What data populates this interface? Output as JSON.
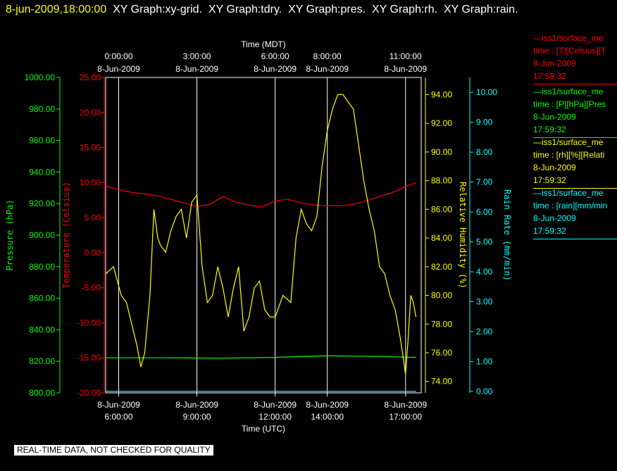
{
  "header": {
    "timestamp": "8-jun-2009,18:00:00",
    "titles": "  XY Graph:xy-grid.  XY Graph:tdry.  XY Graph:pres.  XY Graph:rh.  XY Graph:rain."
  },
  "legend": [
    {
      "line1": "—iss1/surface_me",
      "line2": "time : [T][Celsius][T",
      "line3": "8-Jun-2009",
      "line4": "17:59:32",
      "color": "#ff0000"
    },
    {
      "line1": "—iss1/surface_me",
      "line2": "time : [P][hPa][Pres",
      "line3": "8-Jun-2009",
      "line4": "17:59:32",
      "color": "#00ff00"
    },
    {
      "line1": "—iss1/surface_me",
      "line2": "time : [rh][%][Relati",
      "line3": "8-Jun-2009",
      "line4": "17:59:32",
      "color": "#ffff00"
    },
    {
      "line1": "—iss1/surface_me",
      "line2": "time : [rain][mm/min",
      "line3": "8-Jun-2009",
      "line4": "17:59:32",
      "color": "#00ffff"
    }
  ],
  "footer": "REAL-TIME DATA, NOT CHECKED FOR QUALITY",
  "chart_data": {
    "type": "line",
    "grid": true,
    "xlim_hours_utc": [
      5.5,
      17.6
    ],
    "top_axis": {
      "title": "Time (MDT)",
      "ticks": [
        {
          "at": 6,
          "label1": "0:00:00",
          "label2": "8-Jun-2009"
        },
        {
          "at": 9,
          "label1": "3:00:00",
          "label2": "8-Jun-2009"
        },
        {
          "at": 12,
          "label1": "6:00:00",
          "label2": "8-Jun-2009"
        },
        {
          "at": 14,
          "label1": "8:00:00",
          "label2": "8-Jun-2009"
        },
        {
          "at": 17,
          "label1": "11:00:00",
          "label2": "8-Jun-2009"
        }
      ]
    },
    "bottom_axis": {
      "title": "Time (UTC)",
      "ticks": [
        {
          "at": 6,
          "label1": "8-Jun-2009",
          "label2": "6:00:00"
        },
        {
          "at": 9,
          "label1": "8-Jun-2009",
          "label2": "9:00:00"
        },
        {
          "at": 12,
          "label1": "8-Jun-2009",
          "label2": "12:00:00"
        },
        {
          "at": 14,
          "label1": "8-Jun-2009",
          "label2": "14:00:00"
        },
        {
          "at": 17,
          "label1": "8-Jun-2009",
          "label2": "17:00:00"
        }
      ]
    },
    "y_axes": [
      {
        "id": "pres",
        "label": "Pressure (hPa)",
        "color": "#00ff00",
        "ylim": [
          800,
          1000
        ],
        "ticks": [
          "800.00",
          "820.00",
          "840.00",
          "860.00",
          "880.00",
          "900.00",
          "920.00",
          "940.00",
          "960.00",
          "980.00",
          "1000.00"
        ]
      },
      {
        "id": "tdry",
        "label": "Temperature (Celsius)",
        "color": "#ff0000",
        "ylim": [
          -20,
          25
        ],
        "ticks": [
          "-20.00",
          "-15.00",
          "-10.00",
          "-5.00",
          "0.00",
          "5.00",
          "10.00",
          "15.00",
          "20.00",
          "25.00"
        ]
      },
      {
        "id": "rh",
        "label": "Relative Humidity (%)",
        "color": "#ffff00",
        "ylim": [
          73.2,
          95.2
        ],
        "ticks": [
          "74.00",
          "76.00",
          "78.00",
          "80.00",
          "82.00",
          "84.00",
          "86.00",
          "88.00",
          "90.00",
          "92.00",
          "94.00"
        ]
      },
      {
        "id": "rain",
        "label": "Rain Rate (mm/min)",
        "color": "#00ffff",
        "ylim": [
          -0.05,
          10.5
        ],
        "ticks": [
          "0.00",
          "1.00",
          "2.00",
          "3.00",
          "4.00",
          "5.00",
          "6.00",
          "7.00",
          "8.00",
          "9.00",
          "10.00"
        ]
      }
    ],
    "series": [
      {
        "axis": "tdry",
        "color": "#ff0000",
        "x": [
          5.5,
          6.0,
          6.5,
          7.0,
          7.5,
          8.0,
          8.5,
          9.0,
          9.5,
          10.0,
          10.5,
          11.0,
          11.5,
          12.0,
          12.5,
          13.0,
          13.5,
          14.0,
          14.5,
          15.0,
          15.5,
          16.0,
          16.5,
          17.0,
          17.4
        ],
        "y": [
          9.5,
          9.0,
          8.6,
          8.4,
          8.1,
          7.6,
          7.1,
          6.6,
          6.9,
          8.0,
          7.2,
          6.8,
          6.5,
          7.4,
          7.6,
          7.1,
          6.8,
          6.7,
          6.7,
          6.9,
          7.4,
          8.0,
          8.6,
          9.4,
          10.0
        ]
      },
      {
        "axis": "pres",
        "color": "#00ff00",
        "x": [
          5.5,
          8.0,
          10.0,
          12.0,
          14.0,
          16.0,
          17.4
        ],
        "y": [
          822.2,
          822.2,
          822.0,
          822.5,
          823.5,
          823.1,
          822.5
        ]
      },
      {
        "axis": "rh",
        "color": "#ffff00",
        "x": [
          5.5,
          5.8,
          6.1,
          6.3,
          6.5,
          6.7,
          6.85,
          7.0,
          7.2,
          7.35,
          7.5,
          7.6,
          7.8,
          8.0,
          8.2,
          8.4,
          8.6,
          8.8,
          9.0,
          9.2,
          9.4,
          9.6,
          9.8,
          10.0,
          10.2,
          10.4,
          10.6,
          10.8,
          11.0,
          11.2,
          11.4,
          11.6,
          11.8,
          12.0,
          12.3,
          12.6,
          12.8,
          13.0,
          13.2,
          13.4,
          13.6,
          13.8,
          14.0,
          14.2,
          14.4,
          14.6,
          14.8,
          15.0,
          15.2,
          15.4,
          15.6,
          15.8,
          16.0,
          16.2,
          16.4,
          16.6,
          16.8,
          17.0,
          17.1,
          17.2,
          17.3,
          17.4
        ],
        "y": [
          81.5,
          82.0,
          80.0,
          79.5,
          78.0,
          76.5,
          75.0,
          76.0,
          80.0,
          86.0,
          84.0,
          83.5,
          83.0,
          84.5,
          85.5,
          86.0,
          84.0,
          86.5,
          87.0,
          82.0,
          79.5,
          80.0,
          82.0,
          80.5,
          78.5,
          80.5,
          82.0,
          77.5,
          78.5,
          80.5,
          81.0,
          79.0,
          78.5,
          78.5,
          80.0,
          79.5,
          84.0,
          86.0,
          85.0,
          84.5,
          85.5,
          89.0,
          91.5,
          93.0,
          94.0,
          94.0,
          93.5,
          93.0,
          90.5,
          88.0,
          86.0,
          84.5,
          82.0,
          81.5,
          80.0,
          79.0,
          77.0,
          74.5,
          77.0,
          80.0,
          79.5,
          78.5
        ]
      },
      {
        "axis": "rain",
        "color": "#00ffff",
        "x": [
          5.5,
          17.4
        ],
        "y": [
          0.0,
          0.0
        ]
      }
    ]
  }
}
